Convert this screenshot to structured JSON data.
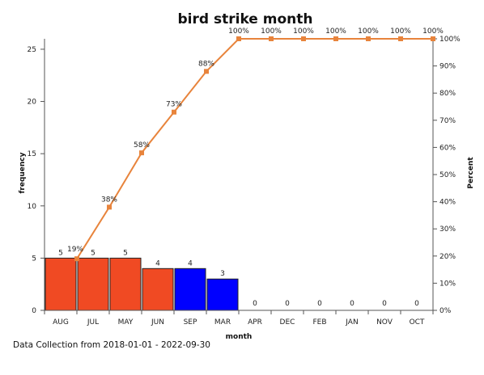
{
  "chart_data": {
    "type": "bar",
    "title": "bird strike month",
    "xlabel": "month",
    "ylabel": "frequency",
    "y2label": "Percent",
    "categories": [
      "AUG",
      "JUL",
      "MAY",
      "JUN",
      "SEP",
      "MAR",
      "APR",
      "DEC",
      "FEB",
      "JAN",
      "NOV",
      "OCT"
    ],
    "values": [
      5,
      5,
      5,
      4,
      4,
      3,
      0,
      0,
      0,
      0,
      0,
      0
    ],
    "bar_colors": [
      "#f04a23",
      "#f04a23",
      "#f04a23",
      "#f04a23",
      "#0000ff",
      "#0000ff",
      "#0000ff",
      "#0000ff",
      "#0000ff",
      "#0000ff",
      "#0000ff",
      "#0000ff"
    ],
    "bar_labels": [
      "5",
      "5",
      "5",
      "4",
      "4",
      "3",
      "0",
      "0",
      "0",
      "0",
      "0",
      "0"
    ],
    "cumulative_percent": [
      19,
      38,
      58,
      73,
      88,
      100,
      100,
      100,
      100,
      100,
      100,
      100
    ],
    "cumulative_labels": [
      "19%",
      "38%",
      "58%",
      "73%",
      "88%",
      "100%",
      "100%",
      "100%",
      "100%",
      "100%",
      "100%",
      "100%"
    ],
    "line_color": "#e8843c",
    "ylim": [
      0,
      26
    ],
    "yticks": [
      0,
      5,
      10,
      15,
      20,
      25
    ],
    "y2lim": [
      0,
      100
    ],
    "y2ticks": [
      "0%",
      "10%",
      "20%",
      "30%",
      "40%",
      "50%",
      "60%",
      "70%",
      "80%",
      "90%",
      "100%"
    ],
    "grid": false,
    "legend": "none"
  },
  "footnote": "Data Collection from 2018-01-01 - 2022-09-30"
}
